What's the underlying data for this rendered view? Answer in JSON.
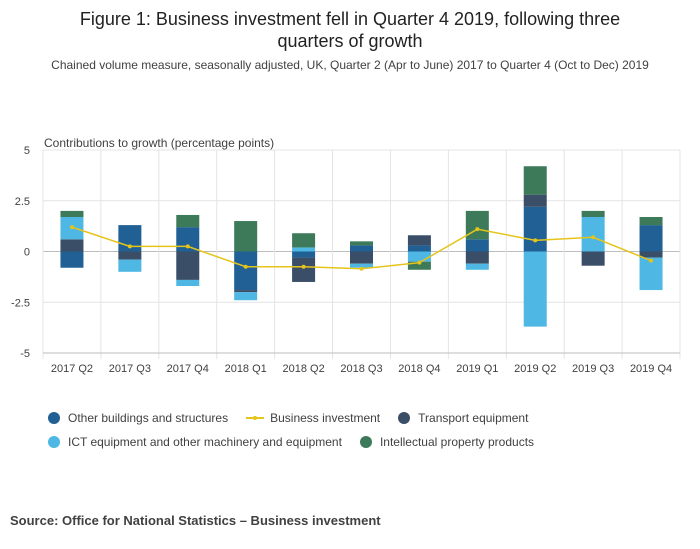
{
  "chart_data": {
    "type": "bar",
    "title_line1": "Figure 1: Business investment fell in Quarter 4 2019, following three",
    "title_line2": "quarters of growth",
    "subtitle": "Chained volume measure, seasonally adjusted, UK, Quarter 2 (Apr to June) 2017 to Quarter 4 (Oct to Dec) 2019",
    "ylabel": "Contributions to growth (percentage points)",
    "ylim": [
      -5,
      5
    ],
    "yticks": [
      5,
      2.5,
      0,
      -2.5,
      -5
    ],
    "ytick_labels": [
      "5",
      "2.5",
      "0",
      "-2.5",
      "-5"
    ],
    "categories": [
      "2017 Q2",
      "2017 Q3",
      "2017 Q4",
      "2018 Q1",
      "2018 Q2",
      "2018 Q3",
      "2018 Q4",
      "2019 Q1",
      "2019 Q2",
      "2019 Q3",
      "2019 Q4"
    ],
    "stacked": true,
    "series": [
      {
        "name": "Other buildings and structures",
        "color": "#206095",
        "values": [
          -0.8,
          1.3,
          1.2,
          -1.9,
          -0.3,
          0.3,
          0.3,
          0.6,
          2.2,
          0,
          1.3
        ]
      },
      {
        "name": "Transport equipment",
        "color": "#27a0cc",
        "values": [
          0.6,
          -0.4,
          -1.4,
          -0.1,
          -1.2,
          -0.6,
          0.5,
          -0.6,
          0.6,
          -0.7,
          -0.3
        ]
      },
      {
        "name": "ICT equipment and other machinery and equipment",
        "color": "#27a0cc",
        "values": [
          1.1,
          -0.6,
          -0.3,
          -0.4,
          0.2,
          -0.2,
          -0.5,
          -0.3,
          -3.7,
          1.7,
          -1.6
        ]
      },
      {
        "name": "Intellectual property products",
        "color": "#3d7a5a",
        "values": [
          0.3,
          0,
          0.6,
          1.5,
          0.7,
          0.2,
          -0.4,
          1.4,
          1.4,
          0.3,
          0.4
        ]
      }
    ],
    "line_series": {
      "name": "Business investment",
      "color": "#e5c41b",
      "values": [
        1.2,
        0.25,
        0.25,
        -0.75,
        -0.75,
        -0.85,
        -0.55,
        1.1,
        0.55,
        0.7,
        -0.45
      ]
    },
    "legend": {
      "row1": [
        {
          "label": "Other buildings and structures",
          "color": "#206095",
          "kind": "dot"
        },
        {
          "label": "Business investment",
          "color": "#e5c41b",
          "kind": "line"
        },
        {
          "label": "Transport equipment",
          "color": "#3b4e68",
          "kind": "dot"
        }
      ],
      "row2": [
        {
          "label": "ICT equipment and other machinery and equipment",
          "color": "#4fb7e3",
          "kind": "dot"
        },
        {
          "label": "Intellectual property products",
          "color": "#3d7a5a",
          "kind": "dot"
        }
      ]
    },
    "source": "Source: Office for National Statistics – Business investment"
  }
}
